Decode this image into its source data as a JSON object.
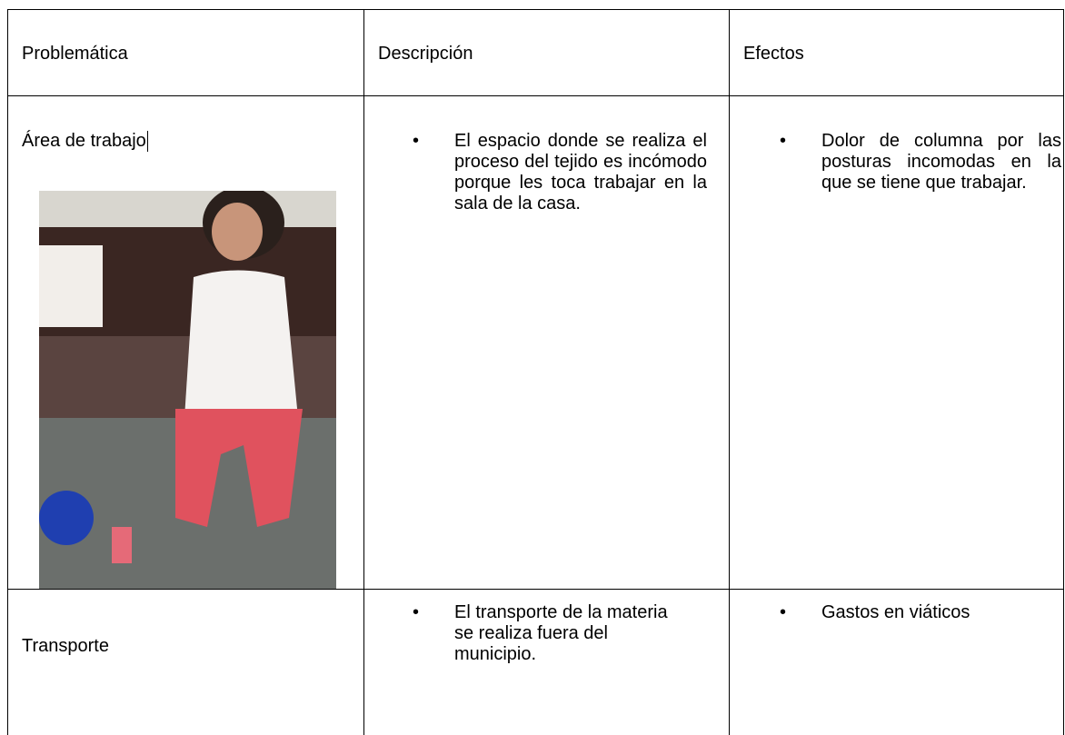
{
  "table": {
    "header": [
      "Problemática",
      "Descripción",
      "Efectos"
    ],
    "rows": [
      {
        "problem": "Área de trabajo",
        "description": [
          "El espacio donde se realiza el proceso del tejido es incómodo porque les toca trabajar en la sala de la casa."
        ],
        "effects": [
          "Dolor de columna por las posturas incomodas  en la que se tiene que trabajar."
        ]
      },
      {
        "problem": "Transporte",
        "description": [
          "El transporte de la materia se realiza fuera del municipio."
        ],
        "effects": [
          "Gastos en viáticos"
        ]
      }
    ]
  }
}
